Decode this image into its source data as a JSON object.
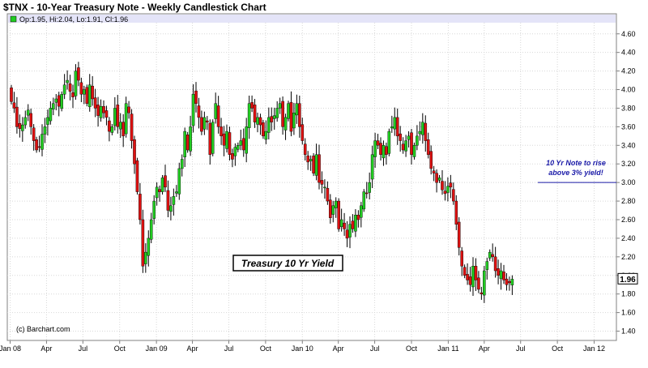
{
  "chart_data": {
    "type": "candlestick",
    "title": "$TNX - 10-Year Treasury Note - Weekly Candlestick Chart",
    "ohlc_summary": "Op:1.95, Hi:2.04, Lo:1.91, Cl:1.96",
    "credit": "(c) Barchart.com",
    "last_value": "1.96",
    "y_ticks": [
      "1.40",
      "1.60",
      "1.80",
      "2.00",
      "2.20",
      "2.40",
      "2.60",
      "2.80",
      "3.00",
      "3.20",
      "3.40",
      "3.60",
      "3.80",
      "4.00",
      "4.20",
      "4.40",
      "4.60"
    ],
    "ylim": [
      1.3,
      4.72
    ],
    "x_ticks": [
      "Jan 08",
      "Apr",
      "Jul",
      "Oct",
      "Jan 09",
      "Apr",
      "Jul",
      "Oct",
      "Jan 10",
      "Apr",
      "Jul",
      "Oct",
      "Jan 11",
      "Apr",
      "Jul",
      "Oct",
      "Jan 12"
    ],
    "box_label": "Treasury 10 Yr Yield",
    "annotation": [
      "10 Yr Note to rise",
      "above 3% yield!"
    ],
    "annotation_level": 3.0,
    "colors": {
      "up": "#22cc22",
      "down": "#dd1111",
      "wick": "#000000",
      "header": "#e4e4f8",
      "annotation": "#1a1aa8"
    },
    "series": {
      "name": "$TNX",
      "week_start": "2008-01-04",
      "close": [
        3.87,
        3.8,
        3.6,
        3.58,
        3.62,
        3.7,
        3.78,
        3.6,
        3.45,
        3.35,
        3.38,
        3.52,
        3.6,
        3.7,
        3.8,
        3.85,
        3.9,
        3.82,
        3.95,
        4.05,
        4.1,
        3.98,
        3.92,
        4.2,
        4.1,
        3.95,
        4.0,
        3.85,
        4.05,
        3.9,
        3.8,
        3.72,
        3.82,
        3.75,
        3.7,
        3.55,
        3.6,
        3.8,
        3.6,
        3.65,
        3.5,
        3.85,
        3.75,
        3.45,
        3.2,
        2.9,
        2.6,
        2.1,
        2.25,
        2.4,
        2.6,
        2.8,
        2.95,
        2.9,
        3.05,
        2.95,
        2.7,
        2.75,
        2.85,
        2.9,
        3.15,
        3.25,
        3.55,
        3.35,
        3.6,
        3.95,
        3.85,
        3.7,
        3.55,
        3.7,
        3.65,
        3.3,
        3.65,
        3.85,
        3.6,
        3.5,
        3.4,
        3.55,
        3.3,
        3.25,
        3.38,
        3.4,
        3.45,
        3.35,
        3.6,
        3.85,
        3.8,
        3.65,
        3.7,
        3.62,
        3.5,
        3.55,
        3.7,
        3.65,
        3.72,
        3.8,
        3.85,
        3.6,
        3.7,
        3.85,
        3.55,
        3.75,
        3.85,
        3.6,
        3.45,
        3.3,
        3.22,
        3.25,
        3.1,
        3.3,
        3.0,
        2.98,
        2.95,
        2.8,
        2.62,
        2.75,
        2.8,
        2.5,
        2.6,
        2.5,
        2.4,
        2.55,
        2.5,
        2.65,
        2.6,
        2.75,
        2.9,
        2.88,
        3.0,
        3.3,
        3.45,
        3.4,
        3.3,
        3.4,
        3.3,
        3.55,
        3.6,
        3.7,
        3.5,
        3.45,
        3.35,
        3.45,
        3.5,
        3.3,
        3.4,
        3.5,
        3.55,
        3.65,
        3.45,
        3.3,
        3.15,
        3.1,
        3.0,
        3.05,
        2.92,
        2.88,
        2.96,
        2.95,
        2.8,
        2.55,
        2.3,
        2.1,
        2.0,
        1.95,
        1.9,
        2.1,
        1.95,
        1.85,
        1.8,
        2.05,
        2.15,
        2.25,
        2.2,
        2.05,
        2.0,
        2.05,
        1.95,
        1.9,
        1.92,
        1.96
      ]
    }
  }
}
